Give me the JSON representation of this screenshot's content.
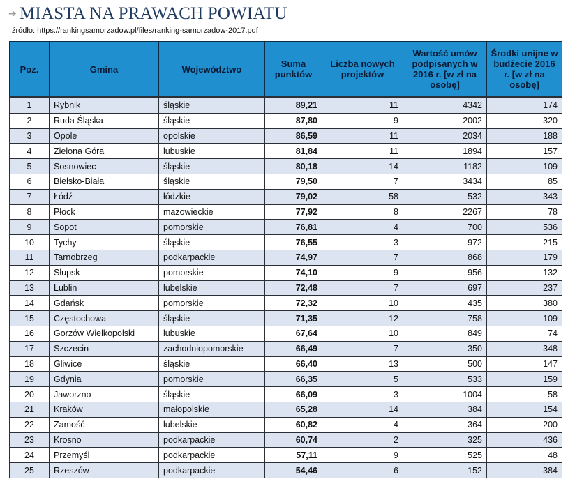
{
  "title": "MIASTA NA PRAWACH POWIATU",
  "source": "źródło: https://rankingsamorzadow.pl/files/ranking-samorzadow-2017.pdf",
  "icons": {
    "title_arrow": "arrow-right-icon"
  },
  "colors": {
    "header_bg": "#1f8fd0",
    "row_alt_bg": "#dce3f1",
    "title": "#1f3a5f"
  },
  "headers": {
    "pos": "Poz.",
    "gmina": "Gmina",
    "woj": "Województwo",
    "suma": "Suma punktów",
    "liczba": "Liczba nowych projektów",
    "wartosc": "Wartość umów podpisanych w 2016 r. [w zł na osobę]",
    "srodki": "Środki unijne w budżecie 2016 r. [w zł na osobę]"
  },
  "rows": [
    {
      "pos": "1",
      "gmina": "Rybnik",
      "woj": "śląskie",
      "suma": "89,21",
      "liczba": "11",
      "wartosc": "4342",
      "srodki": "174"
    },
    {
      "pos": "2",
      "gmina": "Ruda Śląska",
      "woj": "śląskie",
      "suma": "87,80",
      "liczba": "9",
      "wartosc": "2002",
      "srodki": "320"
    },
    {
      "pos": "3",
      "gmina": "Opole",
      "woj": "opolskie",
      "suma": "86,59",
      "liczba": "11",
      "wartosc": "2034",
      "srodki": "188"
    },
    {
      "pos": "4",
      "gmina": "Zielona Góra",
      "woj": "lubuskie",
      "suma": "81,84",
      "liczba": "11",
      "wartosc": "1894",
      "srodki": "157"
    },
    {
      "pos": "5",
      "gmina": "Sosnowiec",
      "woj": "śląskie",
      "suma": "80,18",
      "liczba": "14",
      "wartosc": "1182",
      "srodki": "109"
    },
    {
      "pos": "6",
      "gmina": "Bielsko-Biała",
      "woj": "śląskie",
      "suma": "79,50",
      "liczba": "7",
      "wartosc": "3434",
      "srodki": "85"
    },
    {
      "pos": "7",
      "gmina": "Łódź",
      "woj": "łódzkie",
      "suma": "79,02",
      "liczba": "58",
      "wartosc": "532",
      "srodki": "343"
    },
    {
      "pos": "8",
      "gmina": "Płock",
      "woj": "mazowieckie",
      "suma": "77,92",
      "liczba": "8",
      "wartosc": "2267",
      "srodki": "78"
    },
    {
      "pos": "9",
      "gmina": "Sopot",
      "woj": "pomorskie",
      "suma": "76,81",
      "liczba": "4",
      "wartosc": "700",
      "srodki": "536"
    },
    {
      "pos": "10",
      "gmina": "Tychy",
      "woj": "śląskie",
      "suma": "76,55",
      "liczba": "3",
      "wartosc": "972",
      "srodki": "215"
    },
    {
      "pos": "11",
      "gmina": "Tarnobrzeg",
      "woj": "podkarpackie",
      "suma": "74,97",
      "liczba": "7",
      "wartosc": "868",
      "srodki": "179"
    },
    {
      "pos": "12",
      "gmina": "Słupsk",
      "woj": "pomorskie",
      "suma": "74,10",
      "liczba": "9",
      "wartosc": "956",
      "srodki": "132"
    },
    {
      "pos": "13",
      "gmina": "Lublin",
      "woj": "lubelskie",
      "suma": "72,48",
      "liczba": "7",
      "wartosc": "697",
      "srodki": "237"
    },
    {
      "pos": "14",
      "gmina": "Gdańsk",
      "woj": "pomorskie",
      "suma": "72,32",
      "liczba": "10",
      "wartosc": "435",
      "srodki": "380"
    },
    {
      "pos": "15",
      "gmina": "Częstochowa",
      "woj": "śląskie",
      "suma": "71,35",
      "liczba": "12",
      "wartosc": "758",
      "srodki": "109"
    },
    {
      "pos": "16",
      "gmina": "Gorzów Wielkopolski",
      "woj": "lubuskie",
      "suma": "67,64",
      "liczba": "10",
      "wartosc": "849",
      "srodki": "74"
    },
    {
      "pos": "17",
      "gmina": "Szczecin",
      "woj": "zachodniopomorskie",
      "suma": "66,49",
      "liczba": "7",
      "wartosc": "350",
      "srodki": "348"
    },
    {
      "pos": "18",
      "gmina": "Gliwice",
      "woj": "śląskie",
      "suma": "66,40",
      "liczba": "13",
      "wartosc": "500",
      "srodki": "147"
    },
    {
      "pos": "19",
      "gmina": "Gdynia",
      "woj": "pomorskie",
      "suma": "66,35",
      "liczba": "5",
      "wartosc": "533",
      "srodki": "159"
    },
    {
      "pos": "20",
      "gmina": "Jaworzno",
      "woj": "śląskie",
      "suma": "66,09",
      "liczba": "3",
      "wartosc": "1004",
      "srodki": "58"
    },
    {
      "pos": "21",
      "gmina": "Kraków",
      "woj": "małopolskie",
      "suma": "65,28",
      "liczba": "14",
      "wartosc": "384",
      "srodki": "154"
    },
    {
      "pos": "22",
      "gmina": "Zamość",
      "woj": "lubelskie",
      "suma": "60,82",
      "liczba": "4",
      "wartosc": "364",
      "srodki": "200"
    },
    {
      "pos": "23",
      "gmina": "Krosno",
      "woj": "podkarpackie",
      "suma": "60,74",
      "liczba": "2",
      "wartosc": "325",
      "srodki": "436"
    },
    {
      "pos": "24",
      "gmina": "Przemyśl",
      "woj": "podkarpackie",
      "suma": "57,11",
      "liczba": "9",
      "wartosc": "525",
      "srodki": "48"
    },
    {
      "pos": "25",
      "gmina": "Rzeszów",
      "woj": "podkarpackie",
      "suma": "54,46",
      "liczba": "6",
      "wartosc": "152",
      "srodki": "384"
    }
  ]
}
